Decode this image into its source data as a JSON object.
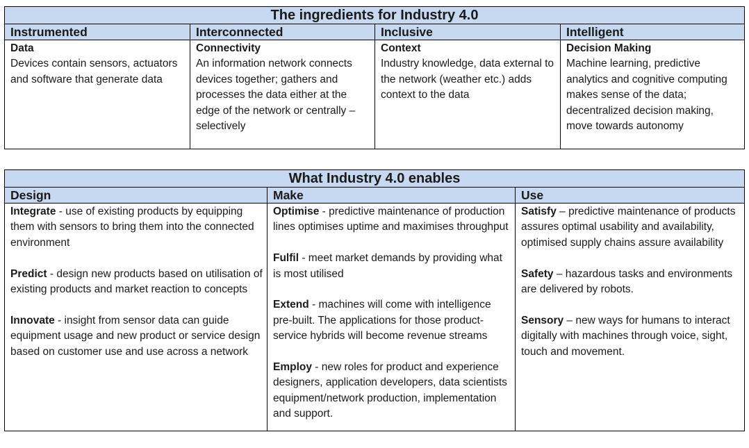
{
  "ingredients": {
    "title": "The ingredients for Industry 4.0",
    "columns": [
      {
        "header": "Instrumented",
        "subheading": "Data",
        "text": "Devices contain sensors, actuators and software that generate data"
      },
      {
        "header": "Interconnected",
        "subheading": "Connectivity",
        "text": "An information network connects devices together; gathers and processes the data either at the edge of the network or centrally – selectively"
      },
      {
        "header": "Inclusive",
        "subheading": "Context",
        "text": "Industry knowledge, data external to the network (weather etc.) adds context to the data"
      },
      {
        "header": "Intelligent",
        "subheading": "Decision Making",
        "text": "Machine learning, predictive analytics and cognitive computing makes sense of the data; decentralized decision making, move towards autonomy"
      }
    ]
  },
  "enables": {
    "title": "What Industry 4.0 enables",
    "columns": [
      {
        "header": "Design",
        "items": [
          {
            "term": "Integrate",
            "text": " - use of existing products by equipping them with sensors to bring them into the connected environment"
          },
          {
            "term": "Predict",
            "text": " - design new products based on utilisation of existing products and market reaction to concepts"
          },
          {
            "term": "Innovate",
            "text": " - insight from sensor data can guide equipment usage and new product or service design based on customer use and use across a network"
          }
        ]
      },
      {
        "header": "Make",
        "items": [
          {
            "term": "Optimise",
            "text": " - predictive maintenance of production lines optimises uptime and maximises throughput"
          },
          {
            "term": "Fulfil",
            "text": " - meet market demands by providing what is most utilised"
          },
          {
            "term": "Extend",
            "text": " - machines will come with intelligence pre-built. The applications for those product-service hybrids will become revenue streams"
          },
          {
            "term": "Employ",
            "text": " - new roles for product and experience designers, application developers, data scientists equipment/network production, implementation and support."
          }
        ]
      },
      {
        "header": "Use",
        "items": [
          {
            "term": "Satisfy",
            "text": " – predictive maintenance of products assures optimal usability and availability, optimised supply chains assure availability"
          },
          {
            "term": "Safety",
            "text": " – hazardous tasks and environments are delivered by robots."
          },
          {
            "term": "Sensory",
            "text": " – new ways for humans to interact digitally with machines through voice, sight, touch and movement."
          }
        ]
      }
    ]
  }
}
